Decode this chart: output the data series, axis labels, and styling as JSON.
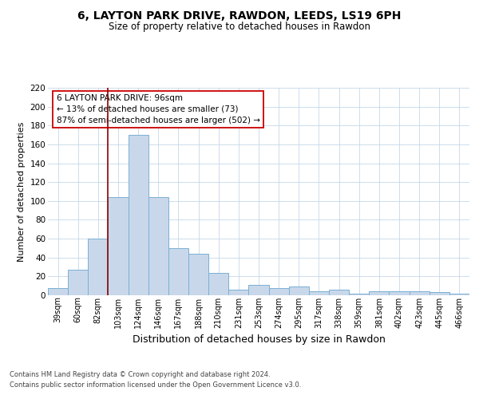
{
  "title": "6, LAYTON PARK DRIVE, RAWDON, LEEDS, LS19 6PH",
  "subtitle": "Size of property relative to detached houses in Rawdon",
  "xlabel": "Distribution of detached houses by size in Rawdon",
  "ylabel": "Number of detached properties",
  "categories": [
    "39sqm",
    "60sqm",
    "82sqm",
    "103sqm",
    "124sqm",
    "146sqm",
    "167sqm",
    "188sqm",
    "210sqm",
    "231sqm",
    "253sqm",
    "274sqm",
    "295sqm",
    "317sqm",
    "338sqm",
    "359sqm",
    "381sqm",
    "402sqm",
    "423sqm",
    "445sqm",
    "466sqm"
  ],
  "values": [
    8,
    27,
    60,
    104,
    170,
    104,
    50,
    44,
    24,
    6,
    11,
    8,
    9,
    4,
    6,
    2,
    4,
    4,
    4,
    3,
    2
  ],
  "bar_color": "#c8d8ea",
  "bar_edge_color": "#7bafd4",
  "marker_color": "#8b0000",
  "annotation_line1": "6 LAYTON PARK DRIVE: 96sqm",
  "annotation_line2": "← 13% of detached houses are smaller (73)",
  "annotation_line3": "87% of semi-detached houses are larger (502) →",
  "annotation_box_color": "#ffffff",
  "annotation_box_edge_color": "#cc0000",
  "footnote1": "Contains HM Land Registry data © Crown copyright and database right 2024.",
  "footnote2": "Contains public sector information licensed under the Open Government Licence v3.0.",
  "ylim": [
    0,
    220
  ],
  "yticks": [
    0,
    20,
    40,
    60,
    80,
    100,
    120,
    140,
    160,
    180,
    200,
    220
  ],
  "background_color": "#ffffff",
  "grid_color": "#c5d8e8",
  "marker_vline_x": 2.5,
  "title_fontsize": 10,
  "subtitle_fontsize": 8.5,
  "ylabel_fontsize": 8,
  "xlabel_fontsize": 9,
  "tick_fontsize": 7,
  "annotation_fontsize": 7.5,
  "footnote_fontsize": 6
}
